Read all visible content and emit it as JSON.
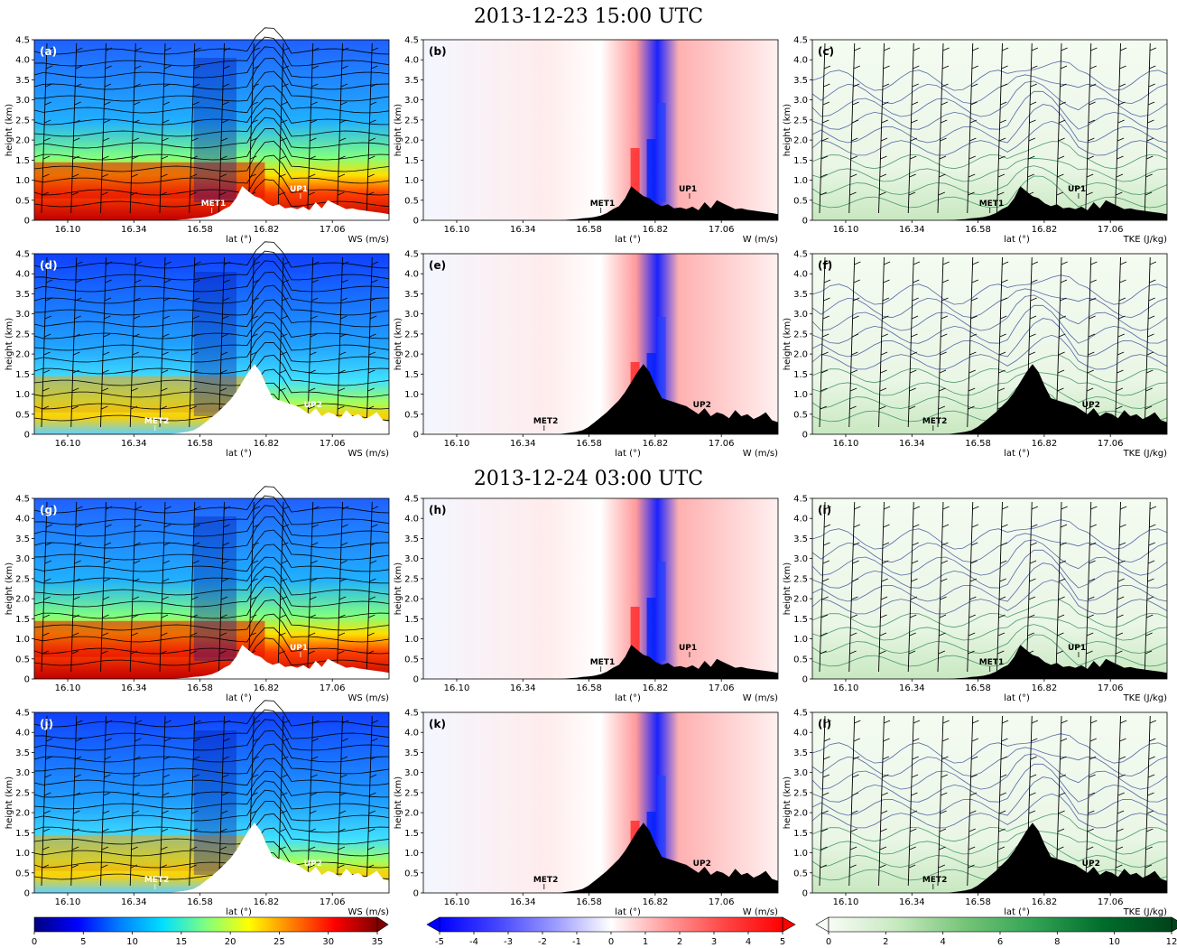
{
  "titles": {
    "top": "2013-12-23 15:00 UTC",
    "bottom": "2013-12-24 03:00 UTC"
  },
  "axes": {
    "ylabel": "height (km)",
    "xlabel": "lat (°)",
    "y_ticks": [
      "0",
      "0.5",
      "1.0",
      "1.5",
      "2.0",
      "2.5",
      "3.0",
      "3.5",
      "4.0",
      "4.5"
    ],
    "x_ticks": [
      "16.10",
      "16.34",
      "16.58",
      "16.82",
      "17.06"
    ]
  },
  "colorbars": [
    {
      "name": "ws",
      "ticks": [
        "0",
        "5",
        "10",
        "15",
        "20",
        "25",
        "30",
        "35"
      ],
      "colors": [
        "#00007f",
        "#0000ff",
        "#0080ff",
        "#00e0ff",
        "#7fff7f",
        "#ffff00",
        "#ff8000",
        "#ff0000",
        "#7f0000"
      ]
    },
    {
      "name": "w",
      "ticks": [
        "-5",
        "-4",
        "-3",
        "-2",
        "-1",
        "0",
        "1",
        "2",
        "3",
        "4",
        "5"
      ],
      "colors": [
        "#0000ff",
        "#4444ff",
        "#9999ff",
        "#ffffff",
        "#ff9999",
        "#ff4444",
        "#ff0000"
      ]
    },
    {
      "name": "tke",
      "ticks": [
        "0",
        "2",
        "4",
        "6",
        "8",
        "10",
        "12"
      ],
      "colors": [
        "#f7fcf5",
        "#c7e9c0",
        "#74c476",
        "#31a354",
        "#006d2c",
        "#00441b"
      ]
    }
  ],
  "chart_data": [
    {
      "type": "heatmap",
      "panel": "(a)",
      "variable": "WS (m/s)",
      "row_time": "2013-12-23 15:00 UTC",
      "site_labels": [
        "MET1",
        "UP1"
      ]
    },
    {
      "type": "heatmap",
      "panel": "(b)",
      "variable": "W (m/s)",
      "row_time": "2013-12-23 15:00 UTC",
      "site_labels": [
        "MET1",
        "UP1"
      ]
    },
    {
      "type": "heatmap",
      "panel": "(c)",
      "variable": "TKE (J/kg)",
      "row_time": "2013-12-23 15:00 UTC",
      "site_labels": [
        "MET1",
        "UP1"
      ]
    },
    {
      "type": "heatmap",
      "panel": "(d)",
      "variable": "WS (m/s)",
      "row_time": "2013-12-23 15:00 UTC",
      "site_labels": [
        "MET2",
        "UP2"
      ]
    },
    {
      "type": "heatmap",
      "panel": "(e)",
      "variable": "W (m/s)",
      "row_time": "2013-12-23 15:00 UTC",
      "site_labels": [
        "MET2",
        "UP2"
      ]
    },
    {
      "type": "heatmap",
      "panel": "(f)",
      "variable": "TKE (J/kg)",
      "row_time": "2013-12-23 15:00 UTC",
      "site_labels": [
        "MET2",
        "UP2"
      ]
    },
    {
      "type": "heatmap",
      "panel": "(g)",
      "variable": "WS (m/s)",
      "row_time": "2013-12-24 03:00 UTC",
      "site_labels": [
        "UP1"
      ]
    },
    {
      "type": "heatmap",
      "panel": "(h)",
      "variable": "W (m/s)",
      "row_time": "2013-12-24 03:00 UTC",
      "site_labels": [
        "MET1",
        "UP1"
      ]
    },
    {
      "type": "heatmap",
      "panel": "(i)",
      "variable": "TKE (J/kg)",
      "row_time": "2013-12-24 03:00 UTC",
      "site_labels": [
        "MET1",
        "UP1"
      ]
    },
    {
      "type": "heatmap",
      "panel": "(j)",
      "variable": "WS (m/s)",
      "row_time": "2013-12-24 03:00 UTC",
      "site_labels": [
        "MET2",
        "UP2"
      ]
    },
    {
      "type": "heatmap",
      "panel": "(k)",
      "variable": "W (m/s)",
      "row_time": "2013-12-24 03:00 UTC",
      "site_labels": [
        "MET2",
        "UP2"
      ]
    },
    {
      "type": "heatmap",
      "panel": "(l)",
      "variable": "TKE (J/kg)",
      "row_time": "2013-12-24 03:00 UTC",
      "site_labels": [
        "MET2",
        "UP2"
      ]
    }
  ]
}
